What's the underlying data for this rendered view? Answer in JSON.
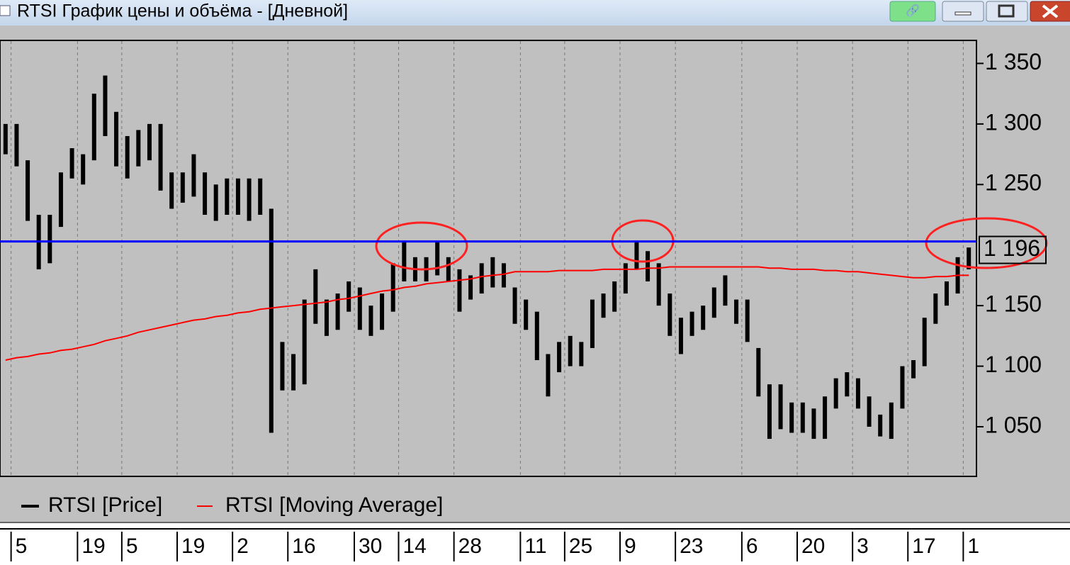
{
  "window_title": "RTSI График цены и объёма - [Дневной]",
  "chart_data": {
    "type": "range",
    "categories": [
      null,
      "5",
      null,
      null,
      null,
      null,
      null,
      "19",
      null,
      null,
      null,
      "5",
      null,
      null,
      null,
      null,
      "19",
      null,
      null,
      null,
      null,
      "2",
      null,
      null,
      null,
      null,
      "16",
      null,
      null,
      null,
      null,
      null,
      "30",
      null,
      null,
      null,
      "14",
      null,
      null,
      null,
      null,
      "28",
      null,
      null,
      null,
      null,
      null,
      "11",
      null,
      null,
      null,
      "25",
      null,
      null,
      null,
      null,
      "9",
      null,
      null,
      null,
      null,
      "23",
      null,
      null,
      null,
      null,
      null,
      "6",
      null,
      null,
      null,
      null,
      "20",
      null,
      null,
      null,
      null,
      "3",
      null,
      null,
      null,
      null,
      "17",
      null,
      null,
      null,
      null,
      "1"
    ],
    "series": [
      {
        "name": "RTSI [Price]",
        "color": "#000000",
        "high": [
          1300,
          1300,
          1270,
          1225,
          1225,
          1260,
          1280,
          1275,
          1325,
          1340,
          1310,
          1290,
          1295,
          1300,
          1300,
          1260,
          1260,
          1275,
          1260,
          1250,
          1255,
          1255,
          1255,
          1255,
          1230,
          1120,
          1110,
          1155,
          1180,
          1155,
          1160,
          1170,
          1165,
          1150,
          1160,
          1185,
          1203,
          1190,
          1190,
          1203,
          1190,
          1180,
          1175,
          1185,
          1190,
          1185,
          1165,
          1155,
          1145,
          1110,
          1120,
          1125,
          1120,
          1155,
          1160,
          1170,
          1185,
          1203,
          1195,
          1185,
          1160,
          1140,
          1145,
          1150,
          1165,
          1175,
          1155,
          1155,
          1115,
          1085,
          1085,
          1070,
          1070,
          1065,
          1075,
          1090,
          1095,
          1090,
          1075,
          1060,
          1070,
          1100,
          1105,
          1140,
          1160,
          1170,
          1190,
          1198
        ],
        "low": [
          1275,
          1265,
          1220,
          1180,
          1185,
          1215,
          1255,
          1250,
          1270,
          1290,
          1265,
          1255,
          1265,
          1270,
          1245,
          1230,
          1235,
          1240,
          1225,
          1220,
          1225,
          1225,
          1220,
          1225,
          1045,
          1080,
          1080,
          1085,
          1135,
          1125,
          1130,
          1145,
          1130,
          1125,
          1130,
          1145,
          1170,
          1170,
          1170,
          1175,
          1170,
          1145,
          1155,
          1160,
          1165,
          1165,
          1135,
          1130,
          1105,
          1075,
          1095,
          1100,
          1100,
          1115,
          1140,
          1145,
          1160,
          1180,
          1170,
          1150,
          1125,
          1110,
          1125,
          1130,
          1140,
          1150,
          1135,
          1120,
          1075,
          1040,
          1048,
          1045,
          1045,
          1040,
          1040,
          1065,
          1075,
          1065,
          1050,
          1042,
          1040,
          1065,
          1090,
          1100,
          1135,
          1150,
          1160,
          1180
        ]
      },
      {
        "name": "RTSI [Moving Average]",
        "color": "#ff0000",
        "values": [
          1105,
          1107,
          1108,
          1110,
          1111,
          1113,
          1114,
          1116,
          1118,
          1121,
          1123,
          1125,
          1128,
          1130,
          1132,
          1134,
          1136,
          1138,
          1139,
          1141,
          1142,
          1144,
          1145,
          1147,
          1148,
          1149,
          1150,
          1151,
          1152,
          1153,
          1155,
          1156,
          1158,
          1160,
          1162,
          1163,
          1165,
          1166,
          1168,
          1169,
          1170,
          1171,
          1172,
          1174,
          1175,
          1176,
          1178,
          1178,
          1178,
          1178,
          1179,
          1179,
          1179,
          1179,
          1180,
          1180,
          1180,
          1180,
          1181,
          1181,
          1182,
          1182,
          1182,
          1182,
          1182,
          1182,
          1182,
          1182,
          1182,
          1181,
          1181,
          1180,
          1180,
          1180,
          1179,
          1179,
          1178,
          1178,
          1177,
          1176,
          1175,
          1174,
          1173,
          1173,
          1174,
          1174,
          1175,
          1175
        ]
      }
    ],
    "ylim": [
      1009,
      1369
    ],
    "yticks": [
      {
        "value": 1050,
        "label": "1 050"
      },
      {
        "value": 1100,
        "label": "1 100"
      },
      {
        "value": 1150,
        "label": "1 150"
      },
      {
        "value": 1250,
        "label": "1 250"
      },
      {
        "value": 1300,
        "label": "1 300"
      },
      {
        "value": 1350,
        "label": "1 350"
      }
    ],
    "level_line": {
      "value": 1203,
      "color": "#0000ff"
    },
    "last_price": {
      "value": 1196,
      "label": "1 196"
    },
    "grid": true
  }
}
